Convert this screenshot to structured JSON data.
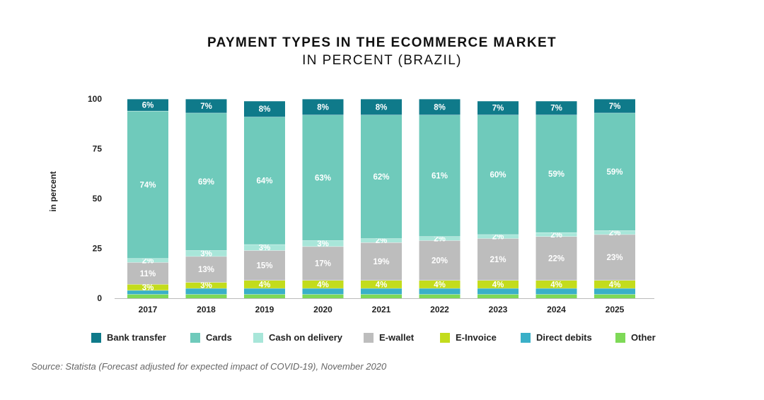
{
  "chart_data": {
    "type": "bar",
    "stacked": true,
    "title": "PAYMENT TYPES IN THE ECOMMERCE MARKET",
    "subtitle": "IN PERCENT (BRAZIL)",
    "ylabel": "in percent",
    "xlabel": "",
    "ylim": [
      0,
      100
    ],
    "yticks": [
      0,
      25,
      50,
      75,
      100
    ],
    "categories": [
      "2017",
      "2018",
      "2019",
      "2020",
      "2021",
      "2022",
      "2023",
      "2024",
      "2025"
    ],
    "series": [
      {
        "name": "Other",
        "color": "#7ed957",
        "values": [
          2,
          2,
          2,
          2,
          2,
          2,
          2,
          2,
          2
        ],
        "labels": [
          "",
          "",
          "",
          "",
          "",
          "",
          "",
          "",
          ""
        ]
      },
      {
        "name": "Direct debits",
        "color": "#3ab0c8",
        "values": [
          2,
          3,
          3,
          3,
          3,
          3,
          3,
          3,
          3
        ],
        "labels": [
          "",
          "",
          "",
          "",
          "",
          "",
          "",
          "",
          ""
        ]
      },
      {
        "name": "E-Invoice",
        "color": "#c3dc1c",
        "values": [
          3,
          3,
          4,
          4,
          4,
          4,
          4,
          4,
          4
        ],
        "labels": [
          "3%",
          "3%",
          "4%",
          "4%",
          "4%",
          "4%",
          "4%",
          "4%",
          "4%"
        ]
      },
      {
        "name": "E-wallet",
        "color": "#bdbdbd",
        "values": [
          11,
          13,
          15,
          17,
          19,
          20,
          21,
          22,
          23
        ],
        "labels": [
          "11%",
          "13%",
          "15%",
          "17%",
          "19%",
          "20%",
          "21%",
          "22%",
          "23%"
        ]
      },
      {
        "name": "Cash on delivery",
        "color": "#a8e6d9",
        "values": [
          2,
          3,
          3,
          3,
          2,
          2,
          2,
          2,
          2
        ],
        "labels": [
          "2%",
          "3%",
          "3%",
          "3%",
          "2%",
          "2%",
          "2%",
          "2%",
          "2%"
        ]
      },
      {
        "name": "Cards",
        "color": "#6fcabb",
        "values": [
          74,
          69,
          64,
          63,
          62,
          61,
          60,
          59,
          59
        ],
        "labels": [
          "74%",
          "69%",
          "64%",
          "63%",
          "62%",
          "61%",
          "60%",
          "59%",
          "59%"
        ]
      },
      {
        "name": "Bank transfer",
        "color": "#0f7a8a",
        "values": [
          6,
          7,
          8,
          8,
          8,
          8,
          7,
          7,
          7
        ],
        "labels": [
          "6%",
          "7%",
          "8%",
          "8%",
          "8%",
          "8%",
          "7%",
          "7%",
          "7%"
        ]
      }
    ],
    "legend_order": [
      "Bank transfer",
      "Cards",
      "Cash on delivery",
      "E-wallet",
      "E-Invoice",
      "Direct debits",
      "Other"
    ],
    "legend_position": "bottom",
    "grid": false
  },
  "source": "Source: Statista (Forecast adjusted for expected impact of COVID-19), November 2020"
}
